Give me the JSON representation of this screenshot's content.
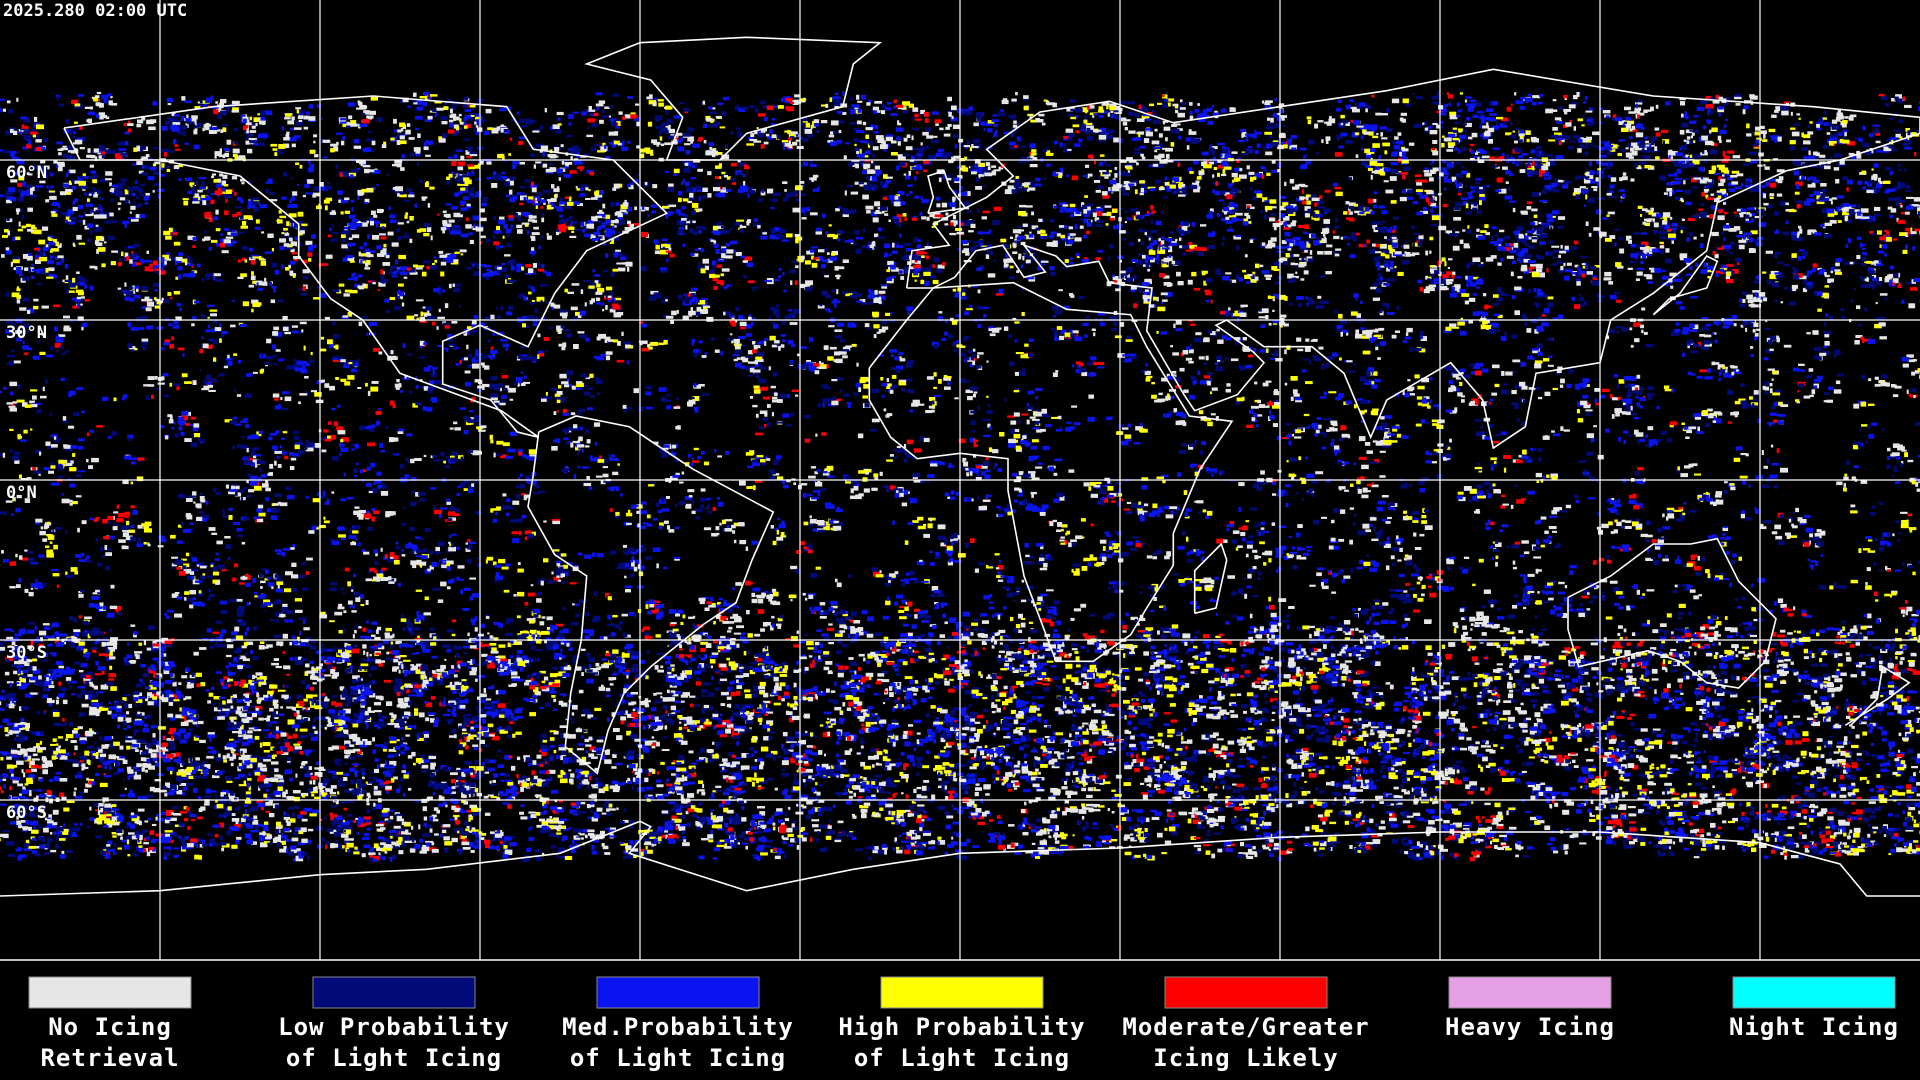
{
  "header": {
    "timestamp": "2025.280 02:00 UTC"
  },
  "map": {
    "latitude_labels": [
      "60°N",
      "30°N",
      "0°N",
      "30°S",
      "60°S"
    ]
  },
  "legend": {
    "items": [
      {
        "lines": [
          "No Icing",
          "Retrieval"
        ],
        "color": "#e6e6e6"
      },
      {
        "lines": [
          "Low Probability",
          "of Light Icing"
        ],
        "color": "#000a78"
      },
      {
        "lines": [
          "Med.Probability",
          "of Light Icing"
        ],
        "color": "#0a14f0"
      },
      {
        "lines": [
          "High Probability",
          "of Light Icing"
        ],
        "color": "#ffff00"
      },
      {
        "lines": [
          "Moderate/Greater",
          "Icing Likely"
        ],
        "color": "#ff0000"
      },
      {
        "lines": [
          "Heavy Icing"
        ],
        "color": "#e6a0e6"
      },
      {
        "lines": [
          "Night Icing"
        ],
        "color": "#00ffff"
      }
    ]
  }
}
